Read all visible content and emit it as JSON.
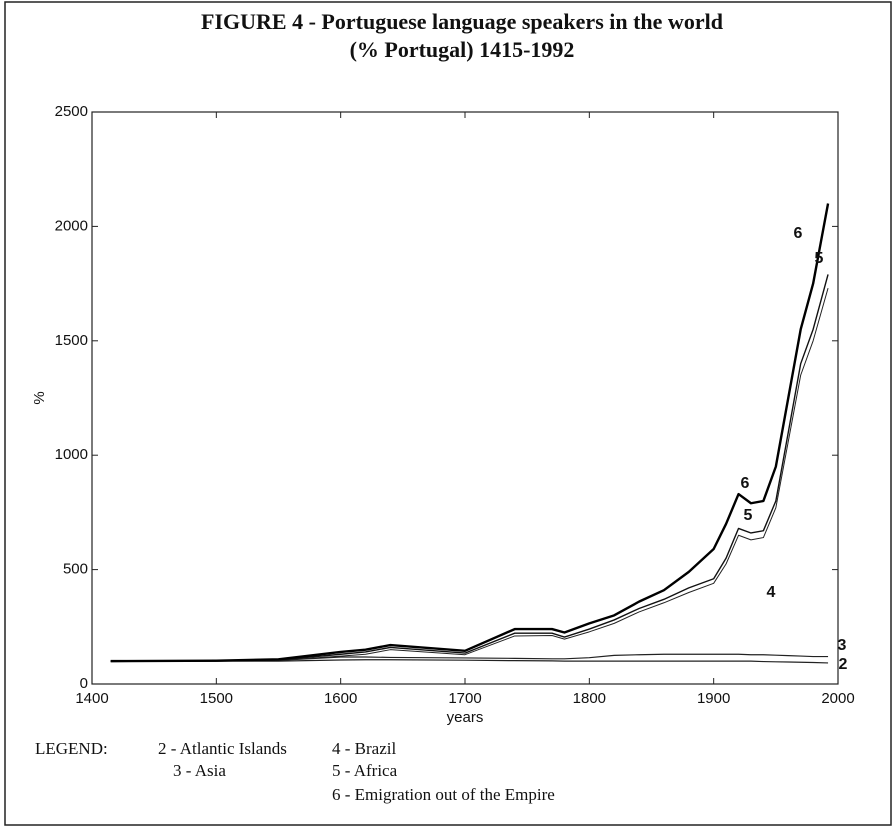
{
  "chart_data": {
    "type": "line",
    "title": "FIGURE 4 - Portuguese language speakers in the world",
    "subtitle": "(% Portugal) 1415-1992",
    "x_label": "years",
    "y_label": "%",
    "legend_title": "LEGEND:",
    "x": [
      1415,
      1500,
      1550,
      1600,
      1620,
      1640,
      1700,
      1740,
      1770,
      1780,
      1800,
      1820,
      1840,
      1860,
      1880,
      1900,
      1910,
      1920,
      1930,
      1940,
      1950,
      1960,
      1970,
      1980,
      1992
    ],
    "series": [
      {
        "name": "2 - Atlantic Islands",
        "color": "#222222",
        "values": [
          100,
          100,
          100,
          105,
          106,
          106,
          104,
          102,
          101,
          100,
          100,
          100,
          100,
          100,
          100,
          100,
          100,
          100,
          100,
          98,
          97,
          96,
          95,
          94,
          92
        ]
      },
      {
        "name": "3 - Asia",
        "color": "#222222",
        "values": [
          100,
          101,
          103,
          118,
          118,
          116,
          114,
          112,
          110,
          110,
          115,
          125,
          128,
          130,
          130,
          130,
          130,
          130,
          128,
          128,
          126,
          124,
          122,
          120,
          120
        ]
      },
      {
        "name": "4 - Brazil",
        "color": "#222222",
        "values": [
          100,
          100,
          103,
          122,
          130,
          150,
          128,
          210,
          212,
          196,
          228,
          265,
          315,
          355,
          400,
          440,
          525,
          650,
          630,
          640,
          770,
          1060,
          1350,
          1500,
          1730
        ]
      },
      {
        "name": "5 - Africa",
        "color": "#111111",
        "values": [
          100,
          101,
          105,
          130,
          140,
          160,
          135,
          222,
          222,
          205,
          240,
          280,
          330,
          370,
          420,
          460,
          550,
          680,
          660,
          670,
          800,
          1100,
          1400,
          1550,
          1790
        ]
      },
      {
        "name": "6 - Emigration out of the Empire",
        "color": "#000000",
        "values": [
          100,
          102,
          108,
          140,
          150,
          170,
          145,
          240,
          240,
          225,
          265,
          300,
          360,
          410,
          490,
          590,
          700,
          830,
          790,
          800,
          950,
          1250,
          1550,
          1750,
          2100
        ]
      }
    ],
    "annotations": [
      "6",
      "5",
      "6",
      "5",
      "4",
      "3",
      "2"
    ],
    "xlim": [
      1400,
      2000
    ],
    "xticks": [
      1400,
      1500,
      1600,
      1700,
      1800,
      1900,
      2000
    ],
    "ylim": [
      0,
      2500
    ],
    "yticks": [
      0,
      500,
      1000,
      1500,
      2000,
      2500
    ],
    "grid": false
  }
}
